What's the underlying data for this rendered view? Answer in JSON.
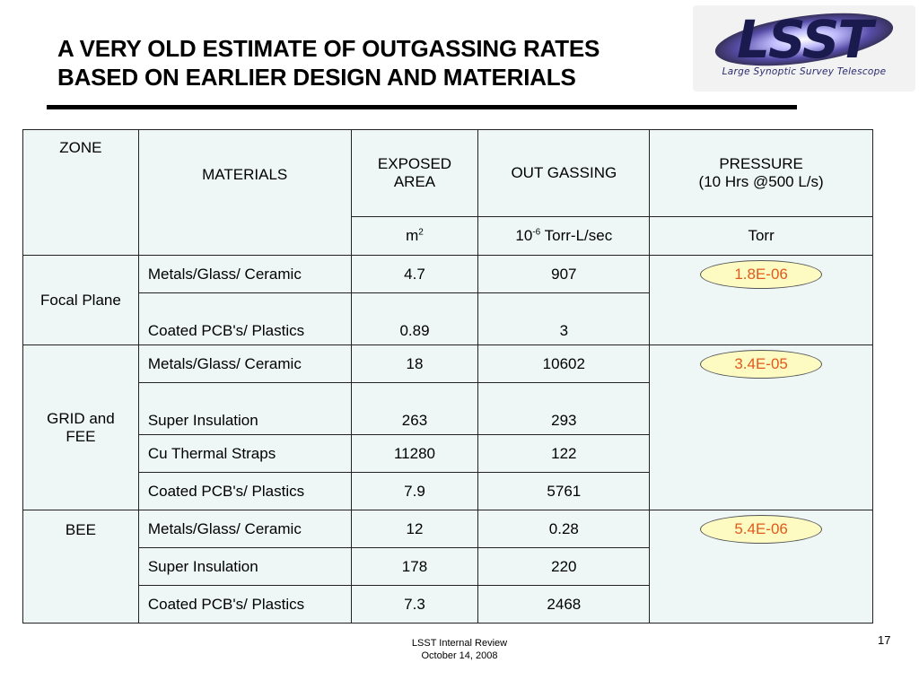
{
  "title": {
    "line1": "A VERY OLD ESTIMATE OF OUTGASSING RATES",
    "line2": "BASED ON EARLIER DESIGN AND MATERIALS"
  },
  "logo": {
    "text": "LSST",
    "subtitle": "Large Synoptic Survey Telescope"
  },
  "table": {
    "headers": {
      "zone": "ZONE",
      "materials": "MATERIALS",
      "area": "EXPOSED AREA",
      "outgassing": "OUT GASSING",
      "pressure_line1": "PRESSURE",
      "pressure_line2": "(10 Hrs @500 L/s)"
    },
    "units": {
      "area_base": "m",
      "area_exp": "2",
      "outgassing_base": "10",
      "outgassing_exp": "-6",
      "outgassing_rest": " Torr-L/sec",
      "pressure": "Torr"
    },
    "zones": [
      {
        "name": "Focal Plane",
        "pressure": "1.8E-06",
        "rows": [
          {
            "material": "Metals/Glass/ Ceramic",
            "area": "4.7",
            "outgassing": "907"
          },
          {
            "material": "Coated PCB's/ Plastics",
            "area": "0.89",
            "outgassing": "3"
          }
        ]
      },
      {
        "name": "GRID and FEE",
        "pressure": "3.4E-05",
        "rows": [
          {
            "material": "Metals/Glass/ Ceramic",
            "area": "18",
            "outgassing": "10602"
          },
          {
            "material": "Super Insulation",
            "area": "263",
            "outgassing": "293"
          },
          {
            "material": "Cu Thermal Straps",
            "area": "11280",
            "outgassing": "122"
          },
          {
            "material": "Coated PCB's/ Plastics",
            "area": "7.9",
            "outgassing": "5761"
          }
        ]
      },
      {
        "name": "BEE",
        "pressure": "5.4E-06",
        "rows": [
          {
            "material": "Metals/Glass/ Ceramic",
            "area": "12",
            "outgassing": "0.28"
          },
          {
            "material": "Super Insulation",
            "area": "178",
            "outgassing": "220"
          },
          {
            "material": "Coated PCB's/ Plastics",
            "area": "7.3",
            "outgassing": "2468"
          }
        ]
      }
    ]
  },
  "footer": {
    "line1": "LSST Internal Review",
    "line2": "October 14, 2008",
    "page_number": "17"
  },
  "colors": {
    "table_bg": "#eef7f6",
    "badge_fill": "#fdfbc2",
    "badge_text": "#e25a1c"
  }
}
